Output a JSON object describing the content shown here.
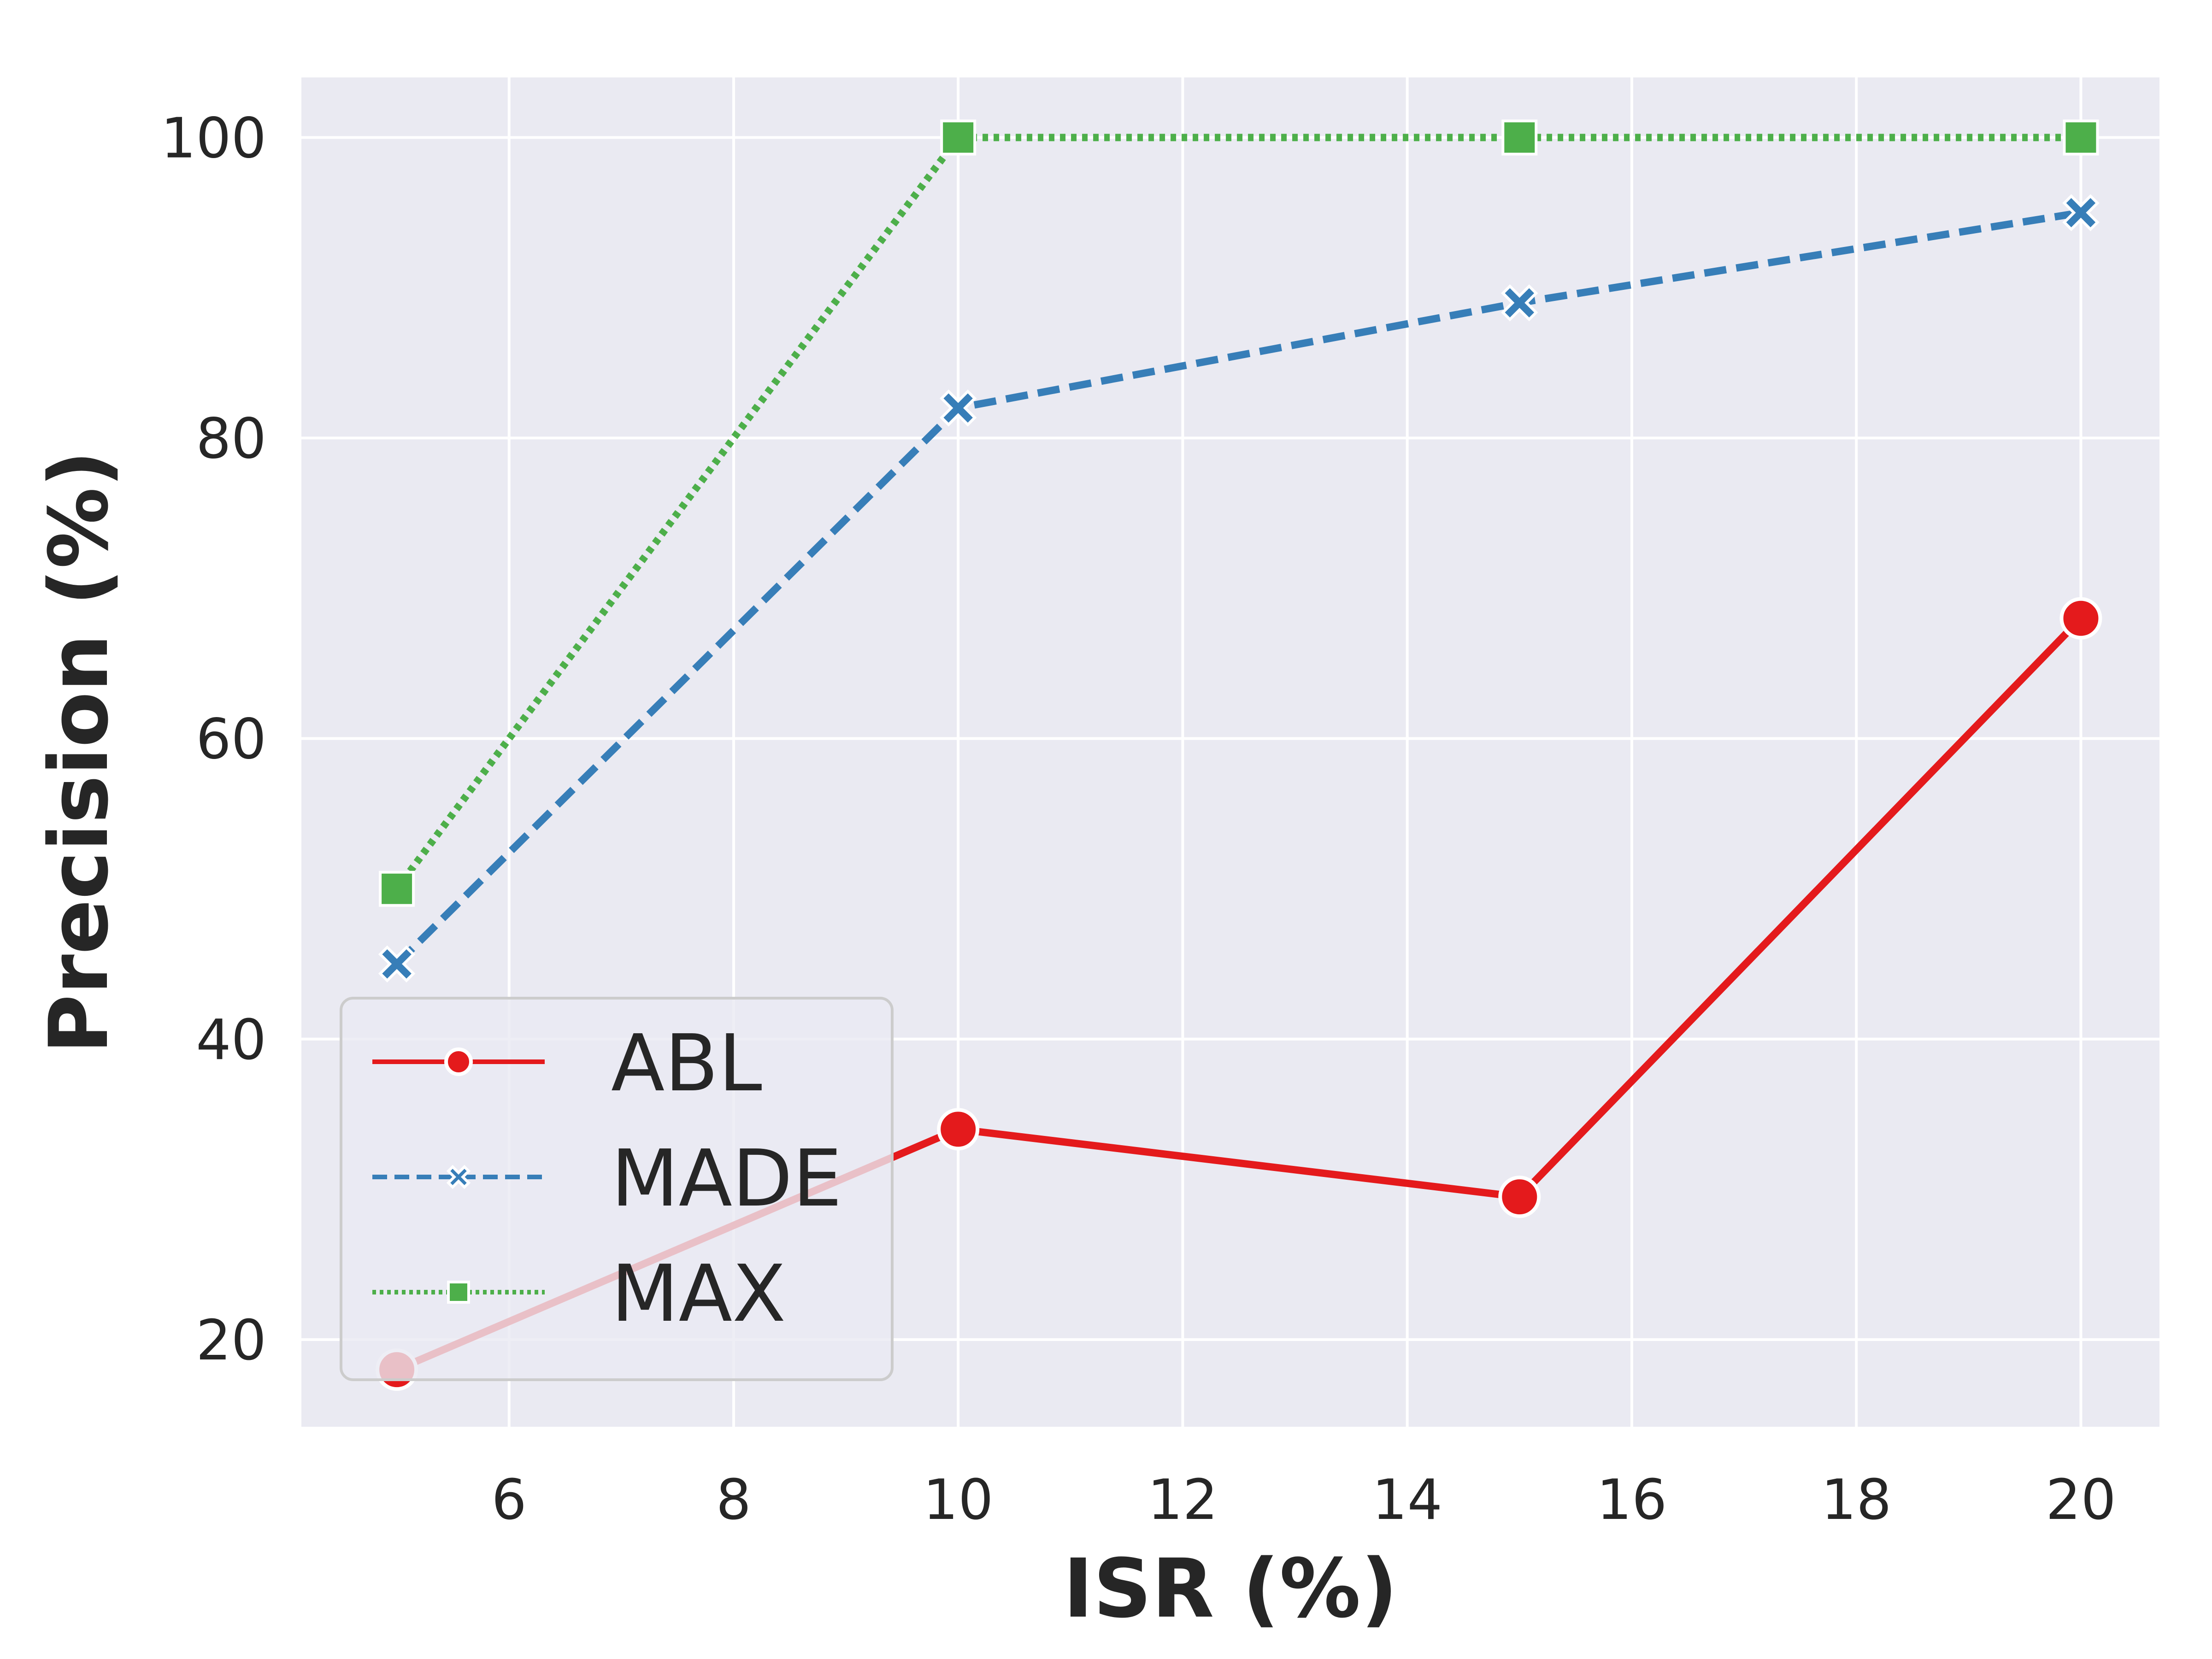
{
  "chart_data": {
    "type": "line",
    "xlabel": "ISR (%)",
    "ylabel": "Precision (%)",
    "xlim": [
      4.15,
      20.7
    ],
    "ylim": [
      14.2,
      104
    ],
    "x_ticks": [
      "6",
      "8",
      "10",
      "12",
      "14",
      "16",
      "18",
      "20"
    ],
    "y_ticks": [
      "20",
      "40",
      "60",
      "80",
      "100"
    ],
    "grid": true,
    "legend_position": "lower-left",
    "x": [
      5,
      10,
      15,
      20
    ],
    "series": [
      {
        "name": "ABL",
        "values": [
          18,
          34,
          29.5,
          68
        ],
        "color": "#e41a1c",
        "style": "solid",
        "marker": "circle"
      },
      {
        "name": "MADE",
        "values": [
          45,
          82,
          89,
          95
        ],
        "color": "#377eb8",
        "style": "dashed",
        "marker": "x"
      },
      {
        "name": "MAX",
        "values": [
          50,
          100,
          100,
          100
        ],
        "color": "#4daf4a",
        "style": "dotted",
        "marker": "square"
      }
    ]
  },
  "colors": {
    "plot_background": "#eaeaf2",
    "grid": "#ffffff",
    "text": "#262626"
  }
}
